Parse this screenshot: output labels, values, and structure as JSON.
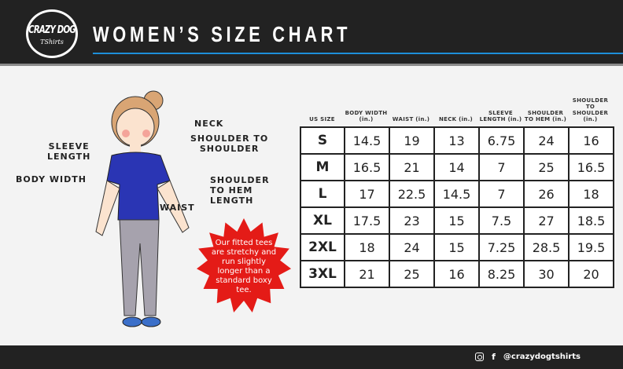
{
  "header": {
    "logo_text": "CRAZY DOG",
    "logo_sub": "TShirts",
    "title": "WOMEN’S SIZE CHART",
    "accent": "#1d8fd8"
  },
  "diagram": {
    "labels": {
      "neck": "NECK",
      "shoulder_to_shoulder": "SHOULDER TO\nSHOULDER",
      "sleeve_length": "SLEEVE\nLENGTH",
      "body_width": "BODY WIDTH",
      "shoulder_to_hem": "SHOULDER\nTO HEM\nLENGTH",
      "waist": "WAIST"
    },
    "note": "Our fitted tees are stretchy and run slightly longer than a standard boxy tee.",
    "note_color": "#e41b17"
  },
  "table": {
    "headers": [
      "US SIZE",
      "BODY WIDTH (in.)",
      "WAIST (in.)",
      "NECK (in.)",
      "SLEEVE LENGTH (in.)",
      "SHOULDER TO HEM (in.)",
      "SHOULDER TO SHOULDER (in.)"
    ],
    "rows": [
      [
        "S",
        "14.5",
        "19",
        "13",
        "6.75",
        "24",
        "16"
      ],
      [
        "M",
        "16.5",
        "21",
        "14",
        "7",
        "25",
        "16.5"
      ],
      [
        "L",
        "17",
        "22.5",
        "14.5",
        "7",
        "26",
        "18"
      ],
      [
        "XL",
        "17.5",
        "23",
        "15",
        "7.5",
        "27",
        "18.5"
      ],
      [
        "2XL",
        "18",
        "24",
        "15",
        "7.25",
        "28.5",
        "19.5"
      ],
      [
        "3XL",
        "21",
        "25",
        "16",
        "8.25",
        "30",
        "20"
      ]
    ]
  },
  "footer": {
    "instagram_icon": "instagram-icon",
    "facebook_icon": "facebook-icon",
    "handle": "@crazydogtshirts"
  }
}
